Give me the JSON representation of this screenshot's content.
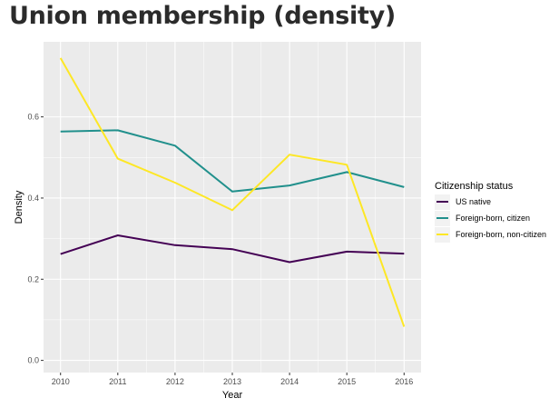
{
  "chart_data": {
    "type": "line",
    "title": "Union membership (density)",
    "xlabel": "Year",
    "ylabel": "Density",
    "x": [
      2010,
      2011,
      2012,
      2013,
      2014,
      2015,
      2016
    ],
    "x_ticks": [
      "2010",
      "2011",
      "2012",
      "2013",
      "2014",
      "2015",
      "2016"
    ],
    "y_ticks": [
      "0.0",
      "0.2",
      "0.4",
      "0.6"
    ],
    "ylim": [
      -0.03,
      0.785
    ],
    "grid": true,
    "legend": {
      "title": "Citizenship status",
      "placement": "right"
    },
    "series": [
      {
        "name": "US native",
        "color": "#440154",
        "values": [
          0.262,
          0.308,
          0.284,
          0.274,
          0.242,
          0.268,
          0.263
        ]
      },
      {
        "name": "Foreign-born, citizen",
        "color": "#21908c",
        "values": [
          0.564,
          0.567,
          0.529,
          0.416,
          0.431,
          0.464,
          0.427
        ]
      },
      {
        "name": "Foreign-born, non-citizen",
        "color": "#fde725",
        "values": [
          0.745,
          0.497,
          0.438,
          0.37,
          0.507,
          0.482,
          0.083
        ]
      }
    ]
  }
}
